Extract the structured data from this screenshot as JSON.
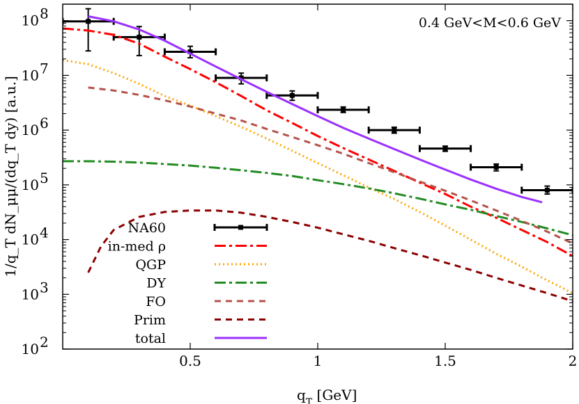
{
  "chart_data": {
    "type": "line",
    "title": "",
    "annotation": "0.4 GeV<M<0.6 GeV",
    "xlabel": "q_T [GeV]",
    "xlabel_main": "q",
    "xlabel_sub": "T",
    "xlabel_unit": " [GeV]",
    "ylabel": "1/q_T dN_μμ/(dq_T dy) [a.u.]",
    "xlim": [
      0,
      2
    ],
    "ylim": [
      100,
      200000000
    ],
    "y_scale": "log",
    "x_ticks": [
      {
        "value": 0.5,
        "label": "0.5"
      },
      {
        "value": 1.0,
        "label": "1"
      },
      {
        "value": 1.5,
        "label": "1.5"
      },
      {
        "value": 2.0,
        "label": "2"
      }
    ],
    "y_ticks": [
      {
        "value": 100,
        "base": "10",
        "exp": "2"
      },
      {
        "value": 1000,
        "base": "10",
        "exp": "3"
      },
      {
        "value": 10000,
        "base": "10",
        "exp": "4"
      },
      {
        "value": 100000,
        "base": "10",
        "exp": "5"
      },
      {
        "value": 1000000,
        "base": "10",
        "exp": "6"
      },
      {
        "value": 10000000,
        "base": "10",
        "exp": "7"
      },
      {
        "value": 100000000,
        "base": "10",
        "exp": "8"
      }
    ],
    "series": [
      {
        "name": "NA60",
        "kind": "errorbars",
        "color": "#000000",
        "points": [
          {
            "x": 0.1,
            "y": 97000000,
            "xerr": 0.1,
            "ylow": 28000000,
            "yhigh": 165000000
          },
          {
            "x": 0.3,
            "y": 50000000,
            "xerr": 0.1,
            "ylow": 23000000,
            "yhigh": 78000000
          },
          {
            "x": 0.5,
            "y": 27000000,
            "xerr": 0.1,
            "ylow": 21000000,
            "yhigh": 34000000
          },
          {
            "x": 0.7,
            "y": 9000000,
            "xerr": 0.1,
            "ylow": 7000000,
            "yhigh": 11000000
          },
          {
            "x": 0.9,
            "y": 4300000,
            "xerr": 0.1,
            "ylow": 3500000,
            "yhigh": 5200000
          },
          {
            "x": 1.1,
            "y": 2350000,
            "xerr": 0.1,
            "ylow": 2100000,
            "yhigh": 2650000
          },
          {
            "x": 1.3,
            "y": 1000000,
            "xerr": 0.1,
            "ylow": 880000,
            "yhigh": 1130000
          },
          {
            "x": 1.5,
            "y": 460000,
            "xerr": 0.1,
            "ylow": 410000,
            "yhigh": 510000
          },
          {
            "x": 1.7,
            "y": 210000,
            "xerr": 0.1,
            "ylow": 180000,
            "yhigh": 240000
          },
          {
            "x": 1.9,
            "y": 80000,
            "xerr": 0.1,
            "ylow": 68000,
            "yhigh": 95000
          }
        ]
      },
      {
        "name": "in-med ρ",
        "kind": "line",
        "color": "#ff0000",
        "dash": "dashdot",
        "x": [
          0.0,
          0.1,
          0.2,
          0.3,
          0.4,
          0.5,
          0.6,
          0.7,
          0.8,
          0.9,
          1.0,
          1.1,
          1.2,
          1.3,
          1.4,
          1.5,
          1.6,
          1.7,
          1.8,
          1.9,
          2.0
        ],
        "y": [
          72000000,
          66000000,
          55000000,
          38000000,
          22000000,
          13000000,
          7500000,
          4200000,
          2300000,
          1350000,
          780000,
          470000,
          290000,
          180000,
          110000,
          68000,
          40000,
          25000,
          15000,
          9000,
          5000
        ]
      },
      {
        "name": "QGP",
        "kind": "line",
        "color": "#ffa500",
        "dash": "dotted",
        "x": [
          0.0,
          0.1,
          0.2,
          0.3,
          0.4,
          0.5,
          0.6,
          0.7,
          0.8,
          0.9,
          1.0,
          1.1,
          1.2,
          1.3,
          1.4,
          1.5,
          1.6,
          1.7,
          1.8,
          1.9,
          2.0
        ],
        "y": [
          19000000,
          16000000,
          11000000,
          7000000,
          4200000,
          2800000,
          1800000,
          1150000,
          700000,
          420000,
          250000,
          150000,
          90000,
          55000,
          32000,
          18000,
          10000,
          5500,
          3200,
          1800,
          1050
        ]
      },
      {
        "name": "DY",
        "kind": "line",
        "color": "#228b22",
        "dash": "dashdot",
        "x": [
          0.0,
          0.1,
          0.2,
          0.3,
          0.4,
          0.5,
          0.6,
          0.7,
          0.8,
          0.9,
          1.0,
          1.1,
          1.2,
          1.3,
          1.4,
          1.5,
          1.6,
          1.7,
          1.8,
          1.9,
          2.0
        ],
        "y": [
          270000,
          270000,
          265000,
          255000,
          240000,
          225000,
          205000,
          185000,
          165000,
          145000,
          122000,
          103000,
          86000,
          70000,
          56000,
          44000,
          35000,
          27000,
          21000,
          16000,
          12000
        ]
      },
      {
        "name": "FO",
        "kind": "line",
        "color": "#b5524a",
        "dash": "dashed",
        "x": [
          0.1,
          0.2,
          0.3,
          0.4,
          0.5,
          0.6,
          0.7,
          0.8,
          0.9,
          1.0,
          1.1,
          1.2,
          1.3,
          1.4,
          1.5,
          1.6,
          1.7,
          1.8,
          1.9,
          2.0
        ],
        "y": [
          6000000,
          5300000,
          4400000,
          3500000,
          2700000,
          2000000,
          1500000,
          1050000,
          750000,
          530000,
          370000,
          250000,
          170000,
          115000,
          78000,
          52000,
          34000,
          22000,
          14000,
          8500
        ]
      },
      {
        "name": "Prim",
        "kind": "line",
        "color": "#8b0000",
        "dash": "dashed",
        "x": [
          0.1,
          0.15,
          0.2,
          0.3,
          0.4,
          0.5,
          0.6,
          0.7,
          0.8,
          0.9,
          1.0,
          1.1,
          1.2,
          1.3,
          1.4,
          1.5,
          1.6,
          1.7,
          1.8,
          1.9,
          2.0
        ],
        "y": [
          2500,
          7500,
          15000,
          26000,
          32000,
          34000,
          34000,
          31000,
          26000,
          21000,
          16500,
          12500,
          9500,
          7000,
          5200,
          3800,
          2800,
          2000,
          1450,
          1050,
          750
        ]
      },
      {
        "name": "total",
        "kind": "line",
        "color": "#9b30ff",
        "dash": "solid",
        "x": [
          0.1,
          0.2,
          0.3,
          0.4,
          0.5,
          0.6,
          0.7,
          0.8,
          0.9,
          1.0,
          1.1,
          1.2,
          1.3,
          1.4,
          1.5,
          1.6,
          1.7,
          1.8,
          1.88
        ],
        "y": [
          120000000,
          97000000,
          69000000,
          43000000,
          25000000,
          14500000,
          8500000,
          5000000,
          3000000,
          1800000,
          1100000,
          700000,
          450000,
          290000,
          190000,
          125000,
          85000,
          60000,
          48000
        ]
      }
    ],
    "legend": {
      "placement": "bottom-left",
      "entries": [
        {
          "label": "NA60",
          "series": "NA60"
        },
        {
          "label": "in-med ρ",
          "series": "in-med ρ"
        },
        {
          "label": "QGP",
          "series": "QGP"
        },
        {
          "label": "DY",
          "series": "DY"
        },
        {
          "label": "FO",
          "series": "FO"
        },
        {
          "label": "Prim",
          "series": "Prim"
        },
        {
          "label": "total",
          "series": "total"
        }
      ]
    }
  }
}
